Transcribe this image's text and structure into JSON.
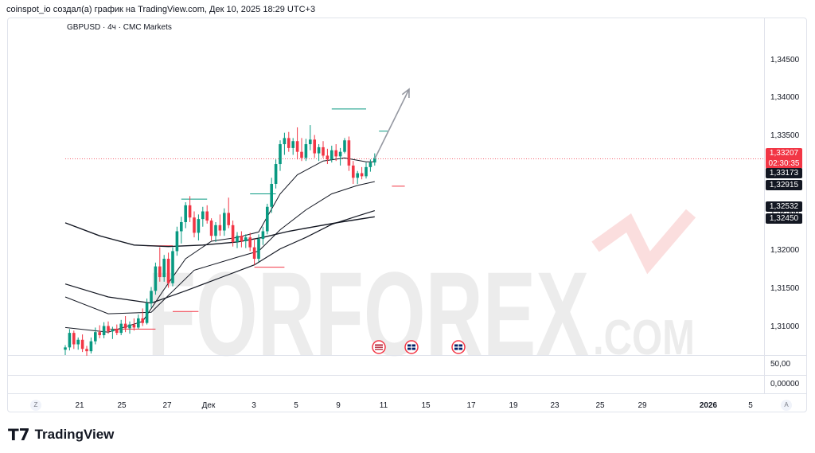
{
  "header": {
    "caption": "coinspot_io создал(а) график на TradingView.com, Дек 10, 2025 18:29 UTC+3"
  },
  "chart": {
    "symbol": "GBPUSD · 4ч · CMC Markets"
  },
  "watermark": {
    "text_main": "FORFOREX",
    "text_sub": ".COM"
  },
  "brand": {
    "name": "TradingView"
  },
  "corners": {
    "left": "Z",
    "right": "A"
  },
  "events": [
    {
      "icon": "us-flag-icon"
    },
    {
      "icon": "gb-flag-icon"
    },
    {
      "icon": "gb-flag-icon"
    }
  ],
  "chart_data": {
    "type": "candlestick",
    "price_axis": {
      "ticks": [
        "1,34500",
        "1,34000",
        "1,33500",
        "1,33000",
        "1,32500",
        "1,32000",
        "1,31500",
        "1,31000"
      ],
      "range": [
        1.3065,
        1.3487
      ]
    },
    "indicator_axis": {
      "ticks": [
        "50,00",
        "0,00000"
      ]
    },
    "time_axis": {
      "ticks": [
        "21",
        "25",
        "27",
        "Дек",
        "3",
        "5",
        "9",
        "11",
        "15",
        "17",
        "19",
        "23",
        "25",
        "29",
        "2026",
        "5"
      ],
      "bold": [
        "2026"
      ]
    },
    "badges": [
      {
        "label": "1,33207",
        "sub": "02:30:35",
        "color": "#f23645"
      },
      {
        "label": "1,33173",
        "color": "#131722"
      },
      {
        "label": "1,32915",
        "color": "#131722"
      },
      {
        "label": "1,32532",
        "color": "#131722"
      },
      {
        "label": "1,32450",
        "color": "#131722"
      }
    ],
    "last_price": 1.33207,
    "candles": [
      [
        1.3071,
        1.3077,
        1.3064,
        1.3074
      ],
      [
        1.3074,
        1.3098,
        1.307,
        1.3093
      ],
      [
        1.3093,
        1.3096,
        1.3072,
        1.3078
      ],
      [
        1.3078,
        1.3087,
        1.3071,
        1.3084
      ],
      [
        1.3084,
        1.3091,
        1.3068,
        1.3072
      ],
      [
        1.3072,
        1.3076,
        1.3063,
        1.3069
      ],
      [
        1.3069,
        1.3087,
        1.3066,
        1.3082
      ],
      [
        1.3082,
        1.31,
        1.3078,
        1.3094
      ],
      [
        1.3094,
        1.3103,
        1.3086,
        1.309
      ],
      [
        1.309,
        1.3107,
        1.3086,
        1.3102
      ],
      [
        1.3102,
        1.3108,
        1.3092,
        1.3095
      ],
      [
        1.3095,
        1.3101,
        1.3085,
        1.3098
      ],
      [
        1.3098,
        1.3104,
        1.309,
        1.3093
      ],
      [
        1.3093,
        1.311,
        1.309,
        1.3105
      ],
      [
        1.3105,
        1.3115,
        1.3094,
        1.3099
      ],
      [
        1.3099,
        1.3108,
        1.3092,
        1.3104
      ],
      [
        1.3104,
        1.3112,
        1.3096,
        1.31
      ],
      [
        1.31,
        1.3117,
        1.3098,
        1.3112
      ],
      [
        1.3112,
        1.3125,
        1.3102,
        1.3106
      ],
      [
        1.3106,
        1.3138,
        1.3104,
        1.3132
      ],
      [
        1.3132,
        1.3153,
        1.3126,
        1.3148
      ],
      [
        1.3148,
        1.3185,
        1.3143,
        1.318
      ],
      [
        1.318,
        1.3205,
        1.316,
        1.3166
      ],
      [
        1.3166,
        1.3195,
        1.316,
        1.319
      ],
      [
        1.319,
        1.3198,
        1.3152,
        1.3158
      ],
      [
        1.3158,
        1.3205,
        1.3154,
        1.32
      ],
      [
        1.32,
        1.3232,
        1.3194,
        1.3226
      ],
      [
        1.3226,
        1.3245,
        1.321,
        1.3238
      ],
      [
        1.3238,
        1.3264,
        1.323,
        1.326
      ],
      [
        1.326,
        1.3272,
        1.3238,
        1.3244
      ],
      [
        1.3244,
        1.3252,
        1.3218,
        1.3224
      ],
      [
        1.3224,
        1.3248,
        1.3214,
        1.3242
      ],
      [
        1.3242,
        1.3258,
        1.3232,
        1.3252
      ],
      [
        1.3252,
        1.326,
        1.3236,
        1.324
      ],
      [
        1.324,
        1.3243,
        1.3214,
        1.322
      ],
      [
        1.322,
        1.3238,
        1.3212,
        1.3234
      ],
      [
        1.3234,
        1.3248,
        1.322,
        1.3227
      ],
      [
        1.3227,
        1.3256,
        1.322,
        1.325
      ],
      [
        1.325,
        1.327,
        1.323,
        1.3234
      ],
      [
        1.3234,
        1.324,
        1.3206,
        1.3212
      ],
      [
        1.3212,
        1.3225,
        1.3204,
        1.322
      ],
      [
        1.322,
        1.3226,
        1.3205,
        1.3213
      ],
      [
        1.3213,
        1.3222,
        1.3204,
        1.3218
      ],
      [
        1.3218,
        1.3224,
        1.32,
        1.3205
      ],
      [
        1.3205,
        1.3216,
        1.3182,
        1.319
      ],
      [
        1.319,
        1.3222,
        1.3186,
        1.3216
      ],
      [
        1.3216,
        1.3232,
        1.3208,
        1.3226
      ],
      [
        1.3226,
        1.3262,
        1.3222,
        1.3258
      ],
      [
        1.3258,
        1.3296,
        1.325,
        1.3288
      ],
      [
        1.3288,
        1.332,
        1.3282,
        1.3314
      ],
      [
        1.3314,
        1.3345,
        1.3305,
        1.334
      ],
      [
        1.334,
        1.3355,
        1.3326,
        1.3348
      ],
      [
        1.3348,
        1.3356,
        1.333,
        1.3335
      ],
      [
        1.3335,
        1.3348,
        1.3326,
        1.3344
      ],
      [
        1.3344,
        1.3362,
        1.332,
        1.333
      ],
      [
        1.333,
        1.3348,
        1.3318,
        1.3322
      ],
      [
        1.3322,
        1.3347,
        1.3318,
        1.334
      ],
      [
        1.334,
        1.3365,
        1.3332,
        1.3346
      ],
      [
        1.3346,
        1.3352,
        1.3322,
        1.3328
      ],
      [
        1.3328,
        1.334,
        1.3318,
        1.3336
      ],
      [
        1.3336,
        1.3344,
        1.3322,
        1.3325
      ],
      [
        1.3325,
        1.3334,
        1.3314,
        1.332
      ],
      [
        1.332,
        1.3338,
        1.3316,
        1.3332
      ],
      [
        1.3332,
        1.334,
        1.3318,
        1.3324
      ],
      [
        1.3324,
        1.3335,
        1.3312,
        1.333
      ],
      [
        1.333,
        1.3348,
        1.3328,
        1.3345
      ],
      [
        1.3345,
        1.335,
        1.3305,
        1.3312
      ],
      [
        1.3312,
        1.3318,
        1.3288,
        1.3296
      ],
      [
        1.3296,
        1.3305,
        1.3288,
        1.3302
      ],
      [
        1.3302,
        1.331,
        1.3294,
        1.3298
      ],
      [
        1.3298,
        1.3316,
        1.3295,
        1.331
      ],
      [
        1.331,
        1.332,
        1.3304,
        1.3316
      ],
      [
        1.3316,
        1.3328,
        1.3312,
        1.3322
      ]
    ],
    "moving_averages": [
      {
        "name": "",
        "color": "#131722",
        "width": 1.0,
        "points": [
          [
            0,
            1.31
          ],
          [
            10,
            1.3094
          ],
          [
            18,
            1.3108
          ],
          [
            23,
            1.315
          ],
          [
            28,
            1.319
          ],
          [
            34,
            1.3213
          ],
          [
            40,
            1.3218
          ],
          [
            45,
            1.3225
          ],
          [
            50,
            1.3275
          ],
          [
            54,
            1.33
          ],
          [
            60,
            1.3318
          ],
          [
            65,
            1.3322
          ],
          [
            70,
            1.3317
          ],
          [
            72,
            1.3317
          ]
        ]
      },
      {
        "name": "",
        "color": "#131722",
        "width": 1.0,
        "points": [
          [
            0,
            1.314
          ],
          [
            10,
            1.3118
          ],
          [
            20,
            1.312
          ],
          [
            30,
            1.3175
          ],
          [
            40,
            1.3192
          ],
          [
            45,
            1.32
          ],
          [
            50,
            1.3228
          ],
          [
            56,
            1.3254
          ],
          [
            62,
            1.3275
          ],
          [
            68,
            1.3286
          ],
          [
            72,
            1.3291
          ]
        ]
      },
      {
        "name": "",
        "color": "#131722",
        "width": 1.2,
        "points": [
          [
            0,
            1.3157
          ],
          [
            10,
            1.314
          ],
          [
            20,
            1.3132
          ],
          [
            28,
            1.3148
          ],
          [
            36,
            1.3165
          ],
          [
            44,
            1.3182
          ],
          [
            50,
            1.3203
          ],
          [
            56,
            1.3218
          ],
          [
            62,
            1.3235
          ],
          [
            68,
            1.3246
          ],
          [
            72,
            1.3253
          ]
        ]
      },
      {
        "name": "",
        "color": "#131722",
        "width": 1.4,
        "points": [
          [
            0,
            1.3237
          ],
          [
            8,
            1.322
          ],
          [
            16,
            1.3208
          ],
          [
            24,
            1.3206
          ],
          [
            32,
            1.3208
          ],
          [
            40,
            1.3212
          ],
          [
            46,
            1.3218
          ],
          [
            52,
            1.3226
          ],
          [
            58,
            1.3232
          ],
          [
            64,
            1.3238
          ],
          [
            72,
            1.3245
          ]
        ]
      }
    ],
    "levels": [
      {
        "start": 62,
        "end": 70,
        "price": 1.3386,
        "color": "#089981"
      },
      {
        "start": 73,
        "end": 75,
        "price": 1.3357,
        "color": "#089981"
      },
      {
        "start": 43,
        "end": 49,
        "price": 1.3275,
        "color": "#089981"
      },
      {
        "start": 27,
        "end": 33,
        "price": 1.3268,
        "color": "#089981"
      },
      {
        "start": 19,
        "end": 25,
        "price": 1.3207,
        "color": "#f23645"
      },
      {
        "start": 25,
        "end": 31,
        "price": 1.3121,
        "color": "#f23645"
      },
      {
        "start": 10,
        "end": 21,
        "price": 1.3098,
        "color": "#f23645"
      },
      {
        "start": 44,
        "end": 51,
        "price": 1.3179,
        "color": "#f23645"
      },
      {
        "start": 76,
        "end": 79,
        "price": 1.3285,
        "color": "#f23645"
      }
    ],
    "projection": {
      "from": [
        1.33207,
        0
      ],
      "to": [
        1.3412,
        8
      ]
    }
  }
}
